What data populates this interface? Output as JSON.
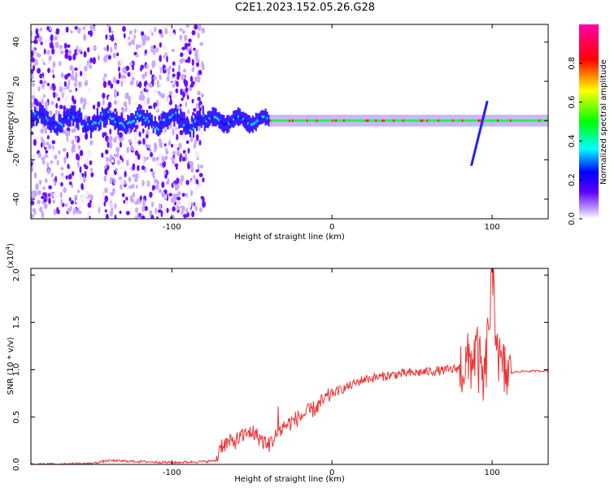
{
  "title": "C2E1.2023.152.05.26.G28",
  "colorbar": {
    "label": "Normalized spectral amplitude",
    "ticks": [
      "0.0",
      "0.2",
      "0.4",
      "0.6",
      "0.8"
    ]
  },
  "chart_data": [
    {
      "type": "heatmap",
      "xlabel": "Height of straight line (km)",
      "ylabel": "Frequency (Hz)",
      "xlim": [
        -188,
        135
      ],
      "ylim": [
        -50,
        49
      ],
      "xticks": [
        -100,
        0,
        100
      ],
      "xtick_labels": [
        "-100",
        "0",
        "100"
      ],
      "yticks": [
        -40,
        -20,
        0,
        20,
        40
      ],
      "ytick_labels": [
        "-40",
        "-20",
        "0",
        "20",
        "40"
      ],
      "features": [
        {
          "x_range": [
            -188,
            -80
          ],
          "freq_range": [
            -50,
            49
          ],
          "amplitude": "scattered noise"
        },
        {
          "x_range": [
            -80,
            135
          ],
          "freq_center": 0,
          "freq_width": 4,
          "amplitude": "0.4-0.9 carrier band"
        },
        {
          "x_range": [
            87,
            97
          ],
          "freq_range": [
            -23,
            10
          ],
          "amplitude": "diagonal streak"
        }
      ]
    },
    {
      "type": "line",
      "xlabel": "Height of straight line (km)",
      "ylabel": "SNR (10 * v/v)",
      "scale_label": "(x10",
      "scale_exp": "4",
      "xlim": [
        -188,
        135
      ],
      "ylim": [
        0,
        2.07
      ],
      "xticks": [
        -100,
        0,
        100
      ],
      "xtick_labels": [
        "-100",
        "0",
        "100"
      ],
      "yticks": [
        0,
        0.5,
        1.0,
        1.5,
        2.0
      ],
      "ytick_labels": [
        "0.0",
        "0.5",
        "1.0",
        "1.5",
        "2.0"
      ],
      "series": [
        {
          "color": "#ee3333",
          "x": [
            -188,
            -150,
            -140,
            -100,
            -80,
            -72,
            -70,
            -60,
            -50,
            -40,
            -30,
            -20,
            -10,
            0,
            10,
            20,
            40,
            60,
            75,
            85,
            90,
            95,
            100,
            105,
            110,
            115,
            135
          ],
          "y": [
            0.0,
            0.01,
            0.04,
            0.02,
            0.03,
            0.04,
            0.2,
            0.25,
            0.35,
            0.2,
            0.4,
            0.5,
            0.6,
            0.75,
            0.82,
            0.9,
            0.95,
            0.98,
            1.0,
            1.05,
            1.2,
            0.8,
            1.95,
            1.0,
            0.95,
            0.98,
            0.99
          ]
        }
      ]
    }
  ]
}
